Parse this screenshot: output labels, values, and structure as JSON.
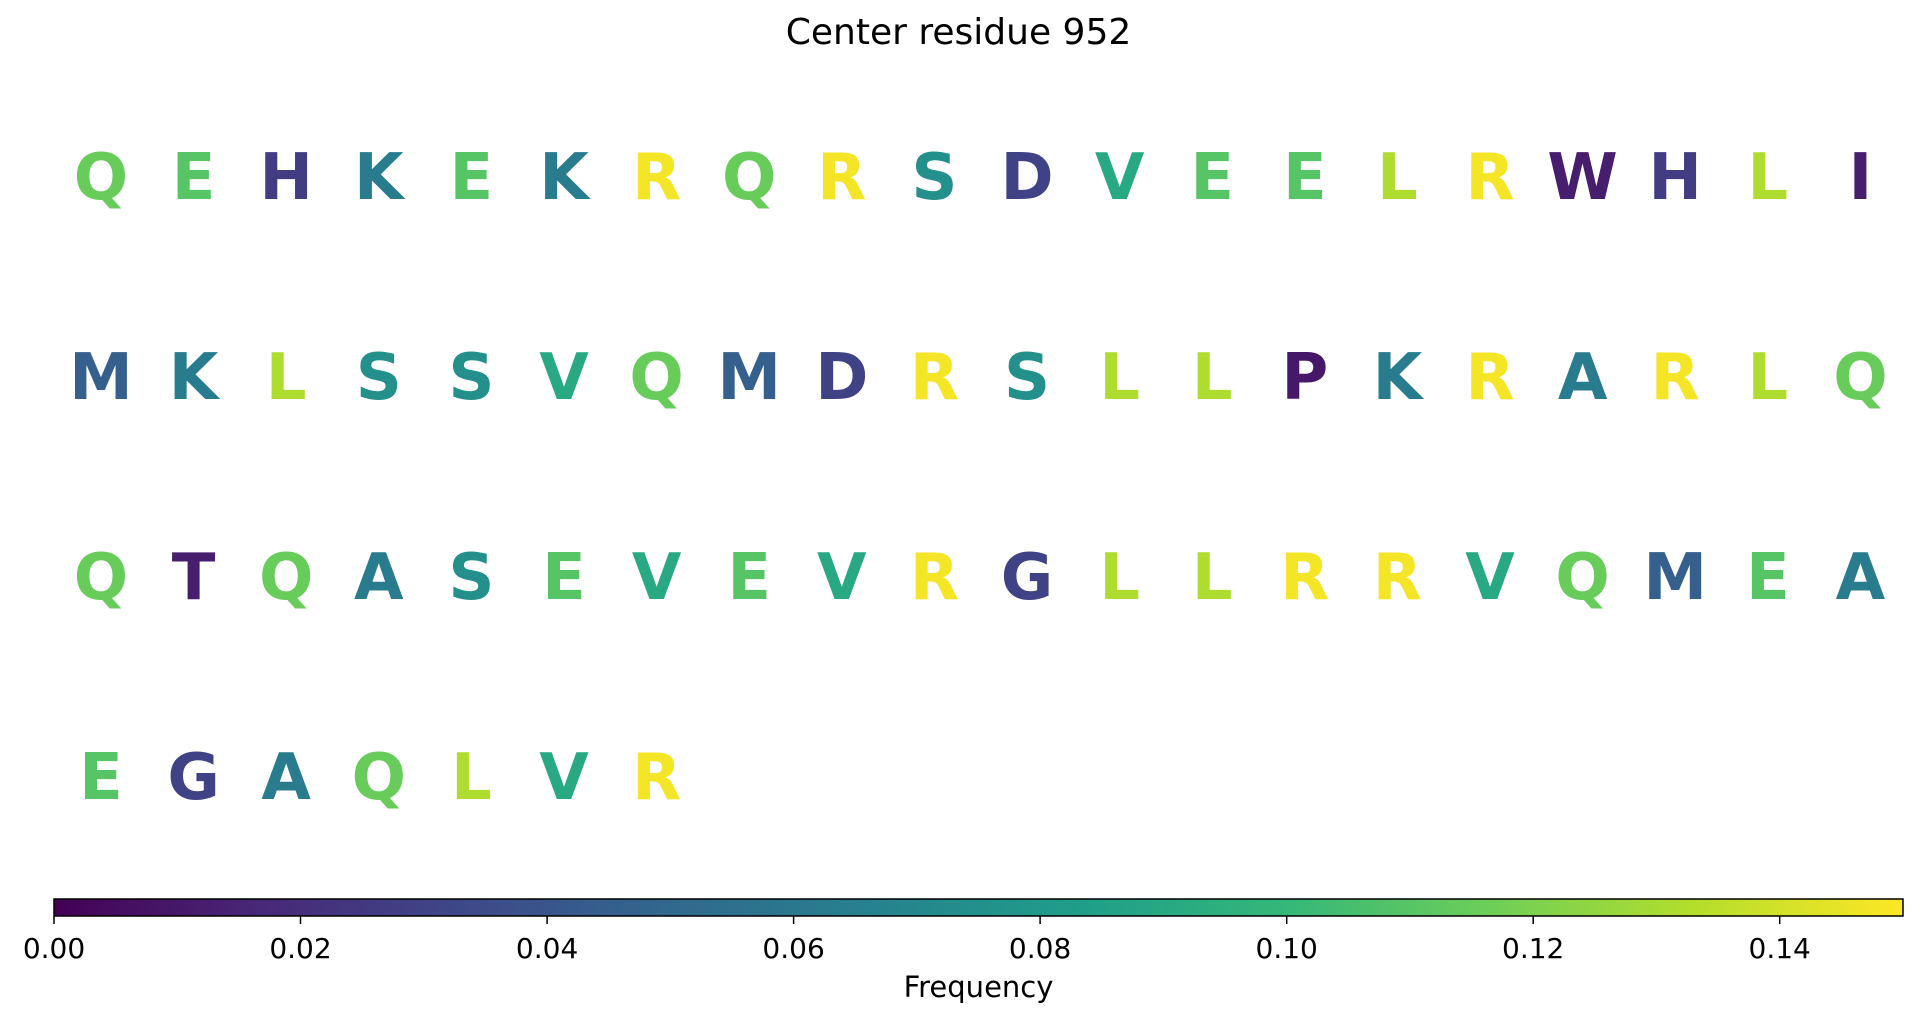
{
  "chart_data": {
    "type": "sequence-colormap",
    "title": "Center residue 952",
    "colormap": "viridis",
    "colorbar": {
      "label": "Frequency",
      "range": [
        0.0,
        0.15
      ],
      "ticks": [
        "0.00",
        "0.02",
        "0.04",
        "0.06",
        "0.08",
        "0.10",
        "0.12",
        "0.14"
      ],
      "orientation": "horizontal",
      "placement": "bottom"
    },
    "columns_per_row": 20,
    "residues": [
      {
        "letter": "Q",
        "frequency": 0.115
      },
      {
        "letter": "E",
        "frequency": 0.11
      },
      {
        "letter": "H",
        "frequency": 0.027
      },
      {
        "letter": "K",
        "frequency": 0.063
      },
      {
        "letter": "E",
        "frequency": 0.11
      },
      {
        "letter": "K",
        "frequency": 0.063
      },
      {
        "letter": "R",
        "frequency": 0.148
      },
      {
        "letter": "Q",
        "frequency": 0.115
      },
      {
        "letter": "R",
        "frequency": 0.148
      },
      {
        "letter": "S",
        "frequency": 0.075
      },
      {
        "letter": "D",
        "frequency": 0.03
      },
      {
        "letter": "V",
        "frequency": 0.09
      },
      {
        "letter": "E",
        "frequency": 0.11
      },
      {
        "letter": "E",
        "frequency": 0.11
      },
      {
        "letter": "L",
        "frequency": 0.132
      },
      {
        "letter": "R",
        "frequency": 0.148
      },
      {
        "letter": "W",
        "frequency": 0.012
      },
      {
        "letter": "H",
        "frequency": 0.027
      },
      {
        "letter": "L",
        "frequency": 0.132
      },
      {
        "letter": "I",
        "frequency": 0.012
      },
      {
        "letter": "M",
        "frequency": 0.045
      },
      {
        "letter": "K",
        "frequency": 0.063
      },
      {
        "letter": "L",
        "frequency": 0.132
      },
      {
        "letter": "S",
        "frequency": 0.075
      },
      {
        "letter": "S",
        "frequency": 0.075
      },
      {
        "letter": "V",
        "frequency": 0.09
      },
      {
        "letter": "Q",
        "frequency": 0.115
      },
      {
        "letter": "M",
        "frequency": 0.045
      },
      {
        "letter": "D",
        "frequency": 0.03
      },
      {
        "letter": "R",
        "frequency": 0.148
      },
      {
        "letter": "S",
        "frequency": 0.075
      },
      {
        "letter": "L",
        "frequency": 0.132
      },
      {
        "letter": "L",
        "frequency": 0.132
      },
      {
        "letter": "P",
        "frequency": 0.01
      },
      {
        "letter": "K",
        "frequency": 0.063
      },
      {
        "letter": "R",
        "frequency": 0.148
      },
      {
        "letter": "A",
        "frequency": 0.062
      },
      {
        "letter": "R",
        "frequency": 0.148
      },
      {
        "letter": "L",
        "frequency": 0.132
      },
      {
        "letter": "Q",
        "frequency": 0.115
      },
      {
        "letter": "Q",
        "frequency": 0.115
      },
      {
        "letter": "T",
        "frequency": 0.012
      },
      {
        "letter": "Q",
        "frequency": 0.115
      },
      {
        "letter": "A",
        "frequency": 0.062
      },
      {
        "letter": "S",
        "frequency": 0.075
      },
      {
        "letter": "E",
        "frequency": 0.11
      },
      {
        "letter": "V",
        "frequency": 0.09
      },
      {
        "letter": "E",
        "frequency": 0.11
      },
      {
        "letter": "V",
        "frequency": 0.09
      },
      {
        "letter": "R",
        "frequency": 0.148
      },
      {
        "letter": "G",
        "frequency": 0.03
      },
      {
        "letter": "L",
        "frequency": 0.132
      },
      {
        "letter": "L",
        "frequency": 0.132
      },
      {
        "letter": "R",
        "frequency": 0.148
      },
      {
        "letter": "R",
        "frequency": 0.148
      },
      {
        "letter": "V",
        "frequency": 0.09
      },
      {
        "letter": "Q",
        "frequency": 0.115
      },
      {
        "letter": "M",
        "frequency": 0.045
      },
      {
        "letter": "E",
        "frequency": 0.11
      },
      {
        "letter": "A",
        "frequency": 0.062
      },
      {
        "letter": "E",
        "frequency": 0.11
      },
      {
        "letter": "G",
        "frequency": 0.03
      },
      {
        "letter": "A",
        "frequency": 0.062
      },
      {
        "letter": "Q",
        "frequency": 0.115
      },
      {
        "letter": "L",
        "frequency": 0.132
      },
      {
        "letter": "V",
        "frequency": 0.09
      },
      {
        "letter": "R",
        "frequency": 0.148
      }
    ]
  }
}
